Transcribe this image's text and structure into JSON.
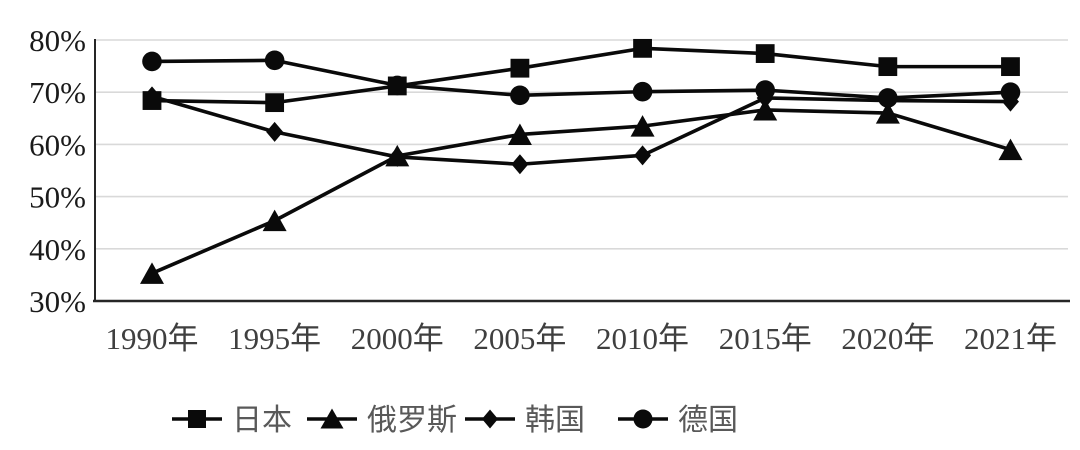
{
  "chart_data": {
    "type": "line",
    "title": "",
    "xlabel": "",
    "ylabel": "",
    "categories": [
      "1990年",
      "1995年",
      "2000年",
      "2005年",
      "2010年",
      "2015年",
      "2020年",
      "2021年"
    ],
    "series": [
      {
        "id": "japan",
        "name": "日本",
        "marker": "square",
        "values": [
          68.4,
          68.0,
          71.2,
          74.6,
          78.4,
          77.4,
          74.9,
          74.9
        ]
      },
      {
        "id": "russia",
        "name": "俄罗斯",
        "marker": "triangle",
        "values": [
          35.3,
          45.4,
          57.8,
          61.9,
          63.5,
          66.6,
          66.0,
          59.0
        ]
      },
      {
        "id": "korea",
        "name": "韩国",
        "marker": "diamond",
        "values": [
          69.2,
          62.4,
          57.6,
          56.2,
          57.9,
          68.9,
          68.4,
          68.2
        ]
      },
      {
        "id": "germany",
        "name": "德国",
        "marker": "circle",
        "values": [
          75.9,
          76.1,
          71.3,
          69.4,
          70.1,
          70.4,
          68.9,
          70.0
        ]
      }
    ],
    "y_ticks": [
      "80%",
      "70%",
      "60%",
      "50%",
      "40%",
      "30%"
    ],
    "ylim": [
      30,
      80
    ],
    "grid": true,
    "legend_position": "bottom"
  },
  "colors": {
    "series_line": "#0a0a0a",
    "marker_fill": "#0a0a0a",
    "gridline": "#d9d9d9",
    "axis_line": "#262626",
    "y_tick_label": "#1a1a1a",
    "x_tick_label": "#3f3f3f",
    "legend_text": "#595959",
    "background": "#ffffff"
  }
}
